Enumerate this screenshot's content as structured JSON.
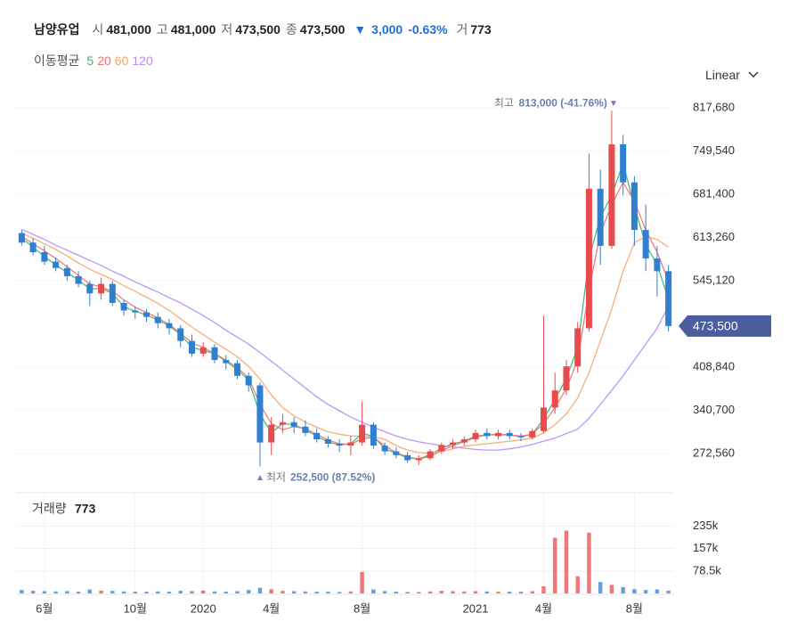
{
  "chart_data": {
    "type": "candlestick",
    "title": "남양유업",
    "quote": [
      {
        "label": "시",
        "value": "481,000"
      },
      {
        "label": "고",
        "value": "481,000"
      },
      {
        "label": "저",
        "value": "473,500"
      },
      {
        "label": "종",
        "value": "473,500"
      }
    ],
    "change": {
      "arrow": "▼",
      "amount": "3,000",
      "percent": "-0.63%"
    },
    "volume_quote": {
      "label": "거",
      "value": "773"
    },
    "ma_legend_title": "이동평균",
    "scale_label": "Linear",
    "categories": [
      null,
      null,
      "6월",
      null,
      null,
      null,
      null,
      null,
      null,
      null,
      "10월",
      null,
      null,
      null,
      null,
      null,
      "2020",
      null,
      null,
      null,
      null,
      null,
      "4월",
      null,
      null,
      null,
      null,
      null,
      null,
      null,
      "8월",
      null,
      null,
      null,
      null,
      null,
      null,
      null,
      null,
      null,
      "2021",
      null,
      null,
      null,
      null,
      null,
      "4월",
      null,
      null,
      null,
      null,
      null,
      null,
      null,
      "8월",
      null,
      null,
      null
    ],
    "open": [
      620000,
      605000,
      590000,
      575000,
      565000,
      552000,
      540000,
      525000,
      540000,
      510000,
      498000,
      495000,
      488000,
      478000,
      470000,
      450000,
      430000,
      440000,
      420000,
      415000,
      395000,
      380000,
      290000,
      318000,
      322000,
      315000,
      305000,
      295000,
      288000,
      285000,
      290000,
      318000,
      285000,
      276000,
      270000,
      262000,
      265000,
      276000,
      286000,
      290000,
      295000,
      305000,
      300000,
      305000,
      300000,
      298000,
      308000,
      345000,
      372000,
      410000,
      470000,
      690000,
      600000,
      760000,
      700000,
      625000,
      580000,
      560000
    ],
    "high": [
      625000,
      612000,
      600000,
      582000,
      570000,
      560000,
      545000,
      550000,
      545000,
      515000,
      505000,
      500000,
      495000,
      485000,
      475000,
      460000,
      448000,
      445000,
      428000,
      420000,
      400000,
      385000,
      330000,
      335000,
      330000,
      325000,
      312000,
      300000,
      295000,
      300000,
      355000,
      322000,
      290000,
      282000,
      275000,
      270000,
      280000,
      290000,
      295000,
      300000,
      310000,
      312000,
      310000,
      310000,
      305000,
      312000,
      490000,
      400000,
      420000,
      480000,
      745000,
      720000,
      813000,
      775000,
      710000,
      665000,
      600000,
      570000
    ],
    "low": [
      600000,
      585000,
      570000,
      560000,
      545000,
      535000,
      505000,
      515000,
      505000,
      490000,
      485000,
      480000,
      470000,
      460000,
      440000,
      425000,
      425000,
      415000,
      405000,
      390000,
      370000,
      252500,
      270000,
      305000,
      305000,
      300000,
      290000,
      282000,
      275000,
      270000,
      285000,
      280000,
      270000,
      265000,
      258000,
      255000,
      262000,
      272000,
      280000,
      285000,
      290000,
      295000,
      295000,
      295000,
      292000,
      295000,
      305000,
      335000,
      365000,
      400000,
      465000,
      570000,
      595000,
      680000,
      600000,
      560000,
      520000,
      465000
    ],
    "close": [
      605000,
      590000,
      575000,
      565000,
      552000,
      540000,
      525000,
      540000,
      510000,
      498000,
      495000,
      488000,
      478000,
      470000,
      450000,
      430000,
      440000,
      420000,
      415000,
      395000,
      380000,
      290000,
      318000,
      322000,
      315000,
      305000,
      295000,
      288000,
      285000,
      290000,
      318000,
      285000,
      276000,
      270000,
      262000,
      265000,
      276000,
      286000,
      290000,
      295000,
      305000,
      300000,
      305000,
      300000,
      298000,
      308000,
      345000,
      372000,
      410000,
      470000,
      690000,
      600000,
      760000,
      700000,
      625000,
      580000,
      560000,
      473500
    ],
    "series": [
      {
        "name": "5",
        "color": "#3cb371",
        "values": [
          612000,
          598000,
          583000,
          570000,
          558000,
          546000,
          532000,
          533000,
          525000,
          504000,
          497000,
          491000,
          483000,
          474000,
          460000,
          440000,
          435000,
          430000,
          418000,
          405000,
          388000,
          335000,
          305000,
          320000,
          318000,
          310000,
          300000,
          291000,
          286000,
          288000,
          304000,
          300000,
          280000,
          273000,
          266000,
          264000,
          271000,
          281000,
          288000,
          292000,
          300000,
          302000,
          302000,
          302000,
          299000,
          303000,
          327000,
          358000,
          391000,
          440000,
          580000,
          645000,
          680000,
          730000,
          662000,
          602000,
          570000,
          517000
        ]
      },
      {
        "name": "20",
        "color": "#f07070",
        "values": [
          615000,
          603000,
          592000,
          580000,
          567000,
          553000,
          540000,
          535000,
          528000,
          515000,
          503000,
          495000,
          486000,
          476000,
          462000,
          447000,
          440000,
          430000,
          420000,
          408000,
          392000,
          350000,
          320000,
          310000,
          315000,
          312000,
          303000,
          294000,
          288000,
          287000,
          296000,
          298000,
          285000,
          274000,
          267000,
          264000,
          268000,
          277000,
          285000,
          291000,
          298000,
          302000,
          303000,
          302000,
          300000,
          303000,
          320000,
          345000,
          375000,
          420000,
          530000,
          620000,
          665000,
          700000,
          670000,
          625000,
          590000,
          545000
        ]
      },
      {
        "name": "60",
        "color": "#f5a46a",
        "values": [
          620000,
          612000,
          603000,
          594000,
          584000,
          573000,
          563000,
          555000,
          547000,
          537000,
          528000,
          519000,
          509000,
          498000,
          485000,
          472000,
          460000,
          448000,
          437000,
          425000,
          410000,
          390000,
          365000,
          345000,
          332000,
          322000,
          314000,
          307000,
          303000,
          300000,
          300000,
          299000,
          295000,
          285000,
          278000,
          274000,
          273000,
          276000,
          280000,
          284000,
          286000,
          288000,
          290000,
          292000,
          294000,
          297000,
          305000,
          318000,
          335000,
          360000,
          400000,
          450000,
          500000,
          560000,
          605000,
          615000,
          610000,
          598000
        ]
      },
      {
        "name": "120",
        "color": "#b58cf5",
        "values": [
          626000,
          618000,
          610000,
          601000,
          593000,
          585000,
          577000,
          569000,
          560000,
          552000,
          543000,
          535000,
          527000,
          518000,
          510000,
          500000,
          490000,
          479000,
          467000,
          456000,
          445000,
          432000,
          418000,
          404000,
          390000,
          376000,
          362000,
          350000,
          340000,
          330000,
          322000,
          314000,
          307000,
          300000,
          295000,
          291000,
          288000,
          285000,
          283000,
          281000,
          279000,
          278000,
          278000,
          280000,
          283000,
          287000,
          292000,
          297000,
          304000,
          311000,
          328000,
          350000,
          372000,
          395000,
          420000,
          445000,
          470000,
          505000
        ]
      }
    ],
    "up_color": "#e84b4b",
    "down_color": "#2f80d1",
    "ylim": [
      229000,
      847000
    ],
    "yticks": [
      {
        "value": 272560,
        "label": "272,560"
      },
      {
        "value": 340700,
        "label": "340,700"
      },
      {
        "value": 408840,
        "label": "408,840"
      },
      {
        "value": 545120,
        "label": "545,120"
      },
      {
        "value": 613260,
        "label": "613,260"
      },
      {
        "value": 681400,
        "label": "681,400"
      },
      {
        "value": 749540,
        "label": "749,540"
      },
      {
        "value": 817680,
        "label": "817,680"
      }
    ],
    "grid": true,
    "current_price": {
      "value": 473500,
      "label": "473,500"
    },
    "annotations": [
      {
        "kind": "max",
        "label": "최고",
        "text": "813,000 (-41.76%)",
        "marker": "▼"
      },
      {
        "kind": "min",
        "label": "최저",
        "text": "252,500 (87.52%)",
        "marker": "▲"
      }
    ],
    "volume": {
      "label": "거래량",
      "current": "773",
      "values": [
        12000,
        9000,
        8000,
        7000,
        8000,
        6000,
        14000,
        10000,
        9000,
        7000,
        6000,
        6000,
        7000,
        6000,
        9000,
        8000,
        10000,
        7000,
        6000,
        8000,
        12000,
        20000,
        15000,
        9000,
        8000,
        7000,
        6000,
        6000,
        5000,
        7000,
        75000,
        14000,
        8000,
        6000,
        5000,
        5000,
        7000,
        9000,
        8000,
        7000,
        8000,
        7000,
        6000,
        6000,
        6000,
        8000,
        25000,
        195000,
        220000,
        60000,
        213000,
        40000,
        30000,
        22000,
        15000,
        12000,
        14000,
        10000
      ],
      "ylim": [
        0,
        312000
      ],
      "yticks": [
        {
          "value": 78500,
          "label": "78.5k"
        },
        {
          "value": 157000,
          "label": "157k"
        },
        {
          "value": 235000,
          "label": "235k"
        }
      ]
    }
  }
}
